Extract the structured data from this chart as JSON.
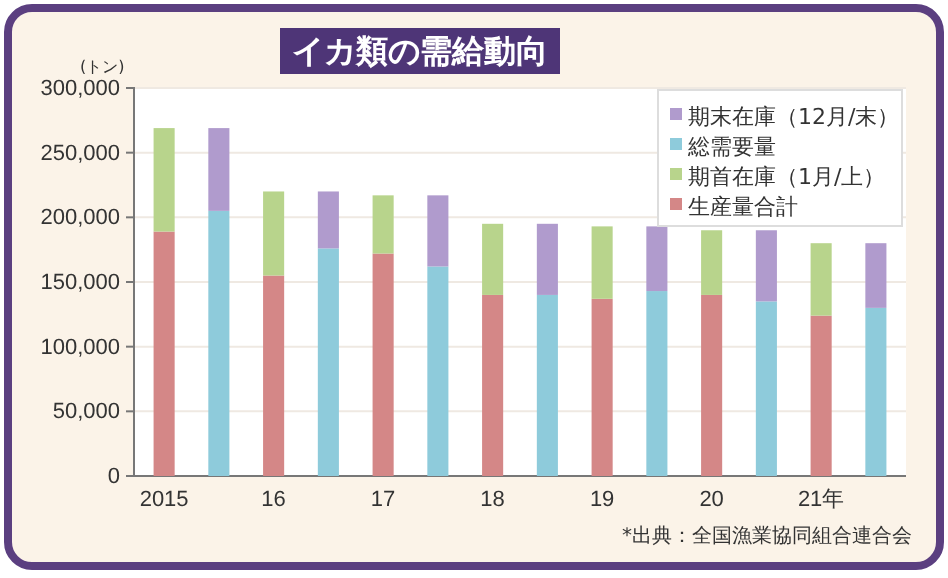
{
  "chart_data": {
    "type": "bar",
    "title": "イカ類の需給動向",
    "ylabel": "(トン)",
    "annotations": [
      "*出典：全国漁業協同組合連合会"
    ],
    "categories": [
      "2015",
      null,
      "16",
      null,
      "17",
      null,
      "18",
      null,
      "19",
      null,
      "20",
      null,
      "21年",
      null
    ],
    "stacked": true,
    "series": [
      {
        "name": "生産量合計",
        "color": "#d48787",
        "values": [
          189000,
          null,
          155000,
          null,
          172000,
          null,
          140000,
          null,
          137000,
          null,
          140000,
          null,
          124000,
          null
        ]
      },
      {
        "name": "期首在庫（1月/上）",
        "color": "#b8d48c",
        "values": [
          80000,
          null,
          65000,
          null,
          45000,
          null,
          55000,
          null,
          56000,
          null,
          50000,
          null,
          56000,
          null
        ]
      },
      {
        "name": "総需要量",
        "color": "#8ecbdb",
        "values": [
          null,
          205000,
          null,
          176000,
          null,
          162000,
          null,
          140000,
          null,
          143000,
          null,
          135000,
          null,
          130000
        ]
      },
      {
        "name": "期末在庫（12月/末）",
        "color": "#b09bcd",
        "values": [
          null,
          64000,
          null,
          44000,
          null,
          55000,
          null,
          55000,
          null,
          50000,
          null,
          55000,
          null,
          50000
        ]
      }
    ],
    "ylim": [
      0,
      300000
    ],
    "yticks": [
      {
        "value": 0,
        "label": "0"
      },
      {
        "value": 50000,
        "label": "50,000"
      },
      {
        "value": 100000,
        "label": "100,000"
      },
      {
        "value": 150000,
        "label": "150,000"
      },
      {
        "value": 200000,
        "label": "200,000"
      },
      {
        "value": 250000,
        "label": "250,000"
      },
      {
        "value": 300000,
        "label": "300,000"
      }
    ],
    "grid": "y",
    "legend": "top right"
  }
}
